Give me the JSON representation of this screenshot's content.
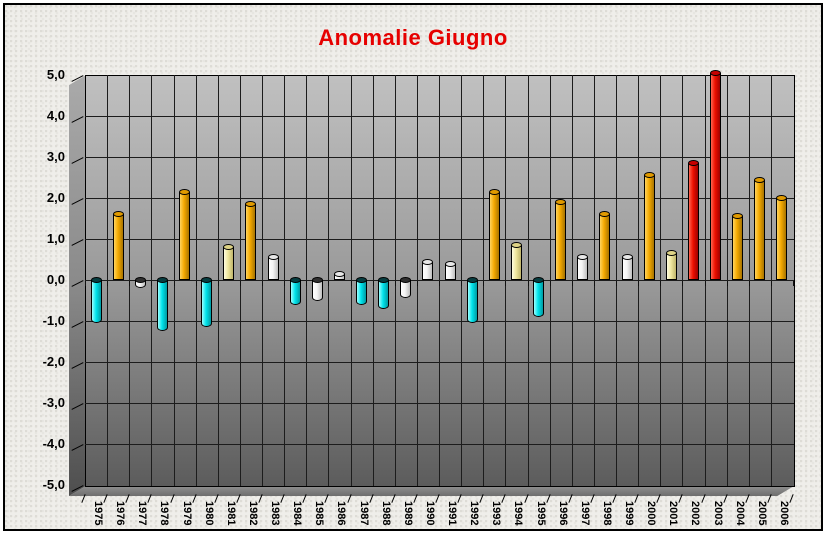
{
  "chart_data": {
    "type": "bar",
    "title": "Anomalie Giugno",
    "xlabel": "",
    "ylabel": "",
    "ylim": [
      -5.0,
      5.0
    ],
    "ytick_step": 1.0,
    "grid": "on",
    "legend": "none",
    "ytick_labels": [
      "5,0",
      "4,0",
      "3,0",
      "2,0",
      "1,0",
      "0,0",
      "-1,0",
      "-2,0",
      "-3,0",
      "-4,0",
      "-5,0"
    ],
    "categories": [
      "1975",
      "1976",
      "1977",
      "1978",
      "1979",
      "1980",
      "1981",
      "1982",
      "1983",
      "1984",
      "1985",
      "1986",
      "1987",
      "1988",
      "1989",
      "1990",
      "1991",
      "1992",
      "1993",
      "1994",
      "1995",
      "1996",
      "1997",
      "1998",
      "1999",
      "2000",
      "2001",
      "2002",
      "2003",
      "2004",
      "2005",
      "2006"
    ],
    "values": [
      -1.05,
      1.6,
      -0.2,
      -1.25,
      2.15,
      -1.15,
      0.8,
      1.85,
      0.55,
      -0.6,
      -0.5,
      0.15,
      -0.6,
      -0.7,
      -0.45,
      0.45,
      0.4,
      -1.05,
      2.15,
      0.85,
      -0.9,
      1.9,
      0.55,
      1.6,
      0.55,
      2.55,
      0.65,
      2.85,
      5.05,
      1.55,
      2.45,
      2.0
    ],
    "bar_colors": [
      "cyan",
      "gold",
      "white",
      "cyan",
      "gold",
      "cyan",
      "cream",
      "gold",
      "white",
      "cyan",
      "white",
      "white",
      "cyan",
      "cyan",
      "white",
      "white",
      "white",
      "cyan",
      "gold",
      "cream",
      "cyan",
      "gold",
      "white",
      "gold",
      "white",
      "gold",
      "cream",
      "red",
      "red",
      "gold",
      "gold",
      "gold"
    ],
    "palette": {
      "gold": {
        "light": "#ffd45e",
        "base": "#f4a900",
        "dark": "#a87400",
        "cap": "#e09a00",
        "capNeg": "#5a3e00"
      },
      "cream": {
        "light": "#fffde0",
        "base": "#efe79e",
        "dark": "#bfb46a",
        "cap": "#ded386",
        "capNeg": "#4a4430"
      },
      "white": {
        "light": "#ffffff",
        "base": "#f4f4f4",
        "dark": "#bfbfbf",
        "cap": "#e8e8e8",
        "capNeg": "#303030"
      },
      "cyan": {
        "light": "#9cffff",
        "base": "#00e4ec",
        "dark": "#009aa2",
        "cap": "#00c4ce",
        "capNeg": "#083e41"
      },
      "red": {
        "light": "#ff6450",
        "base": "#ee1000",
        "dark": "#9e0000",
        "cap": "#c60000",
        "capNeg": "#400000"
      }
    },
    "colors": {
      "title": "#e60000",
      "wall_top": "#c0c0c0",
      "wall_bottom": "#5c5c5c",
      "page_bg": "#efeeea",
      "grid_line": "#1c1c1c"
    }
  }
}
